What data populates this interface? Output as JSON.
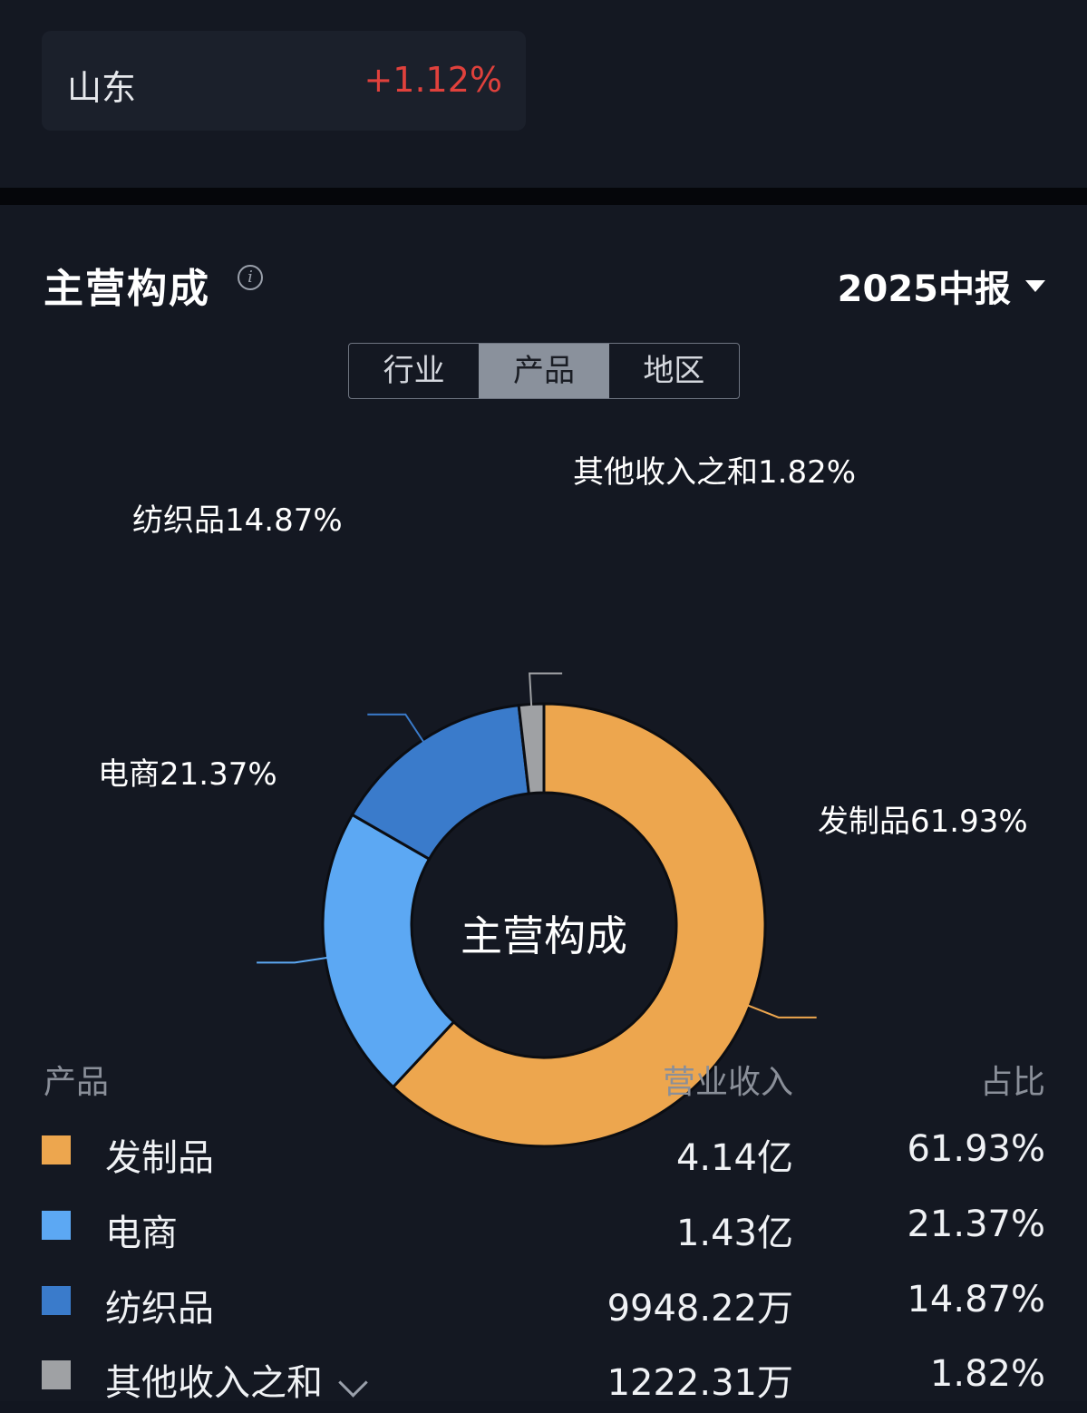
{
  "region": {
    "name": "山东",
    "change": "+1.12%"
  },
  "section": {
    "title": "主营构成",
    "info_icon": "info-icon",
    "period": "2025中报"
  },
  "tabs": [
    {
      "label": "行业",
      "active": false
    },
    {
      "label": "产品",
      "active": true
    },
    {
      "label": "地区",
      "active": false
    }
  ],
  "chart_data": {
    "type": "pie",
    "center_label": "主营构成",
    "categories": [
      "发制品",
      "电商",
      "纺织品",
      "其他收入之和"
    ],
    "values": [
      61.93,
      21.37,
      14.87,
      1.82
    ],
    "labels": [
      "发制品61.93%",
      "电商21.37%",
      "纺织品14.87%",
      "其他收入之和1.82%"
    ],
    "colors": [
      "#eda64e",
      "#5ca8f3",
      "#3a7bcb",
      "#9fa1a4"
    ]
  },
  "table": {
    "headers": {
      "product": "产品",
      "revenue": "营业收入",
      "share": "占比"
    },
    "rows": [
      {
        "name": "发制品",
        "revenue": "4.14亿",
        "share": "61.93%",
        "color": "#eda64e"
      },
      {
        "name": "电商",
        "revenue": "1.43亿",
        "share": "21.37%",
        "color": "#5ca8f3"
      },
      {
        "name": "纺织品",
        "revenue": "9948.22万",
        "share": "14.87%",
        "color": "#3a7bcb"
      },
      {
        "name": "其他收入之和",
        "revenue": "1222.31万",
        "share": "1.82%",
        "color": "#9fa1a4",
        "expandable": true
      }
    ]
  }
}
